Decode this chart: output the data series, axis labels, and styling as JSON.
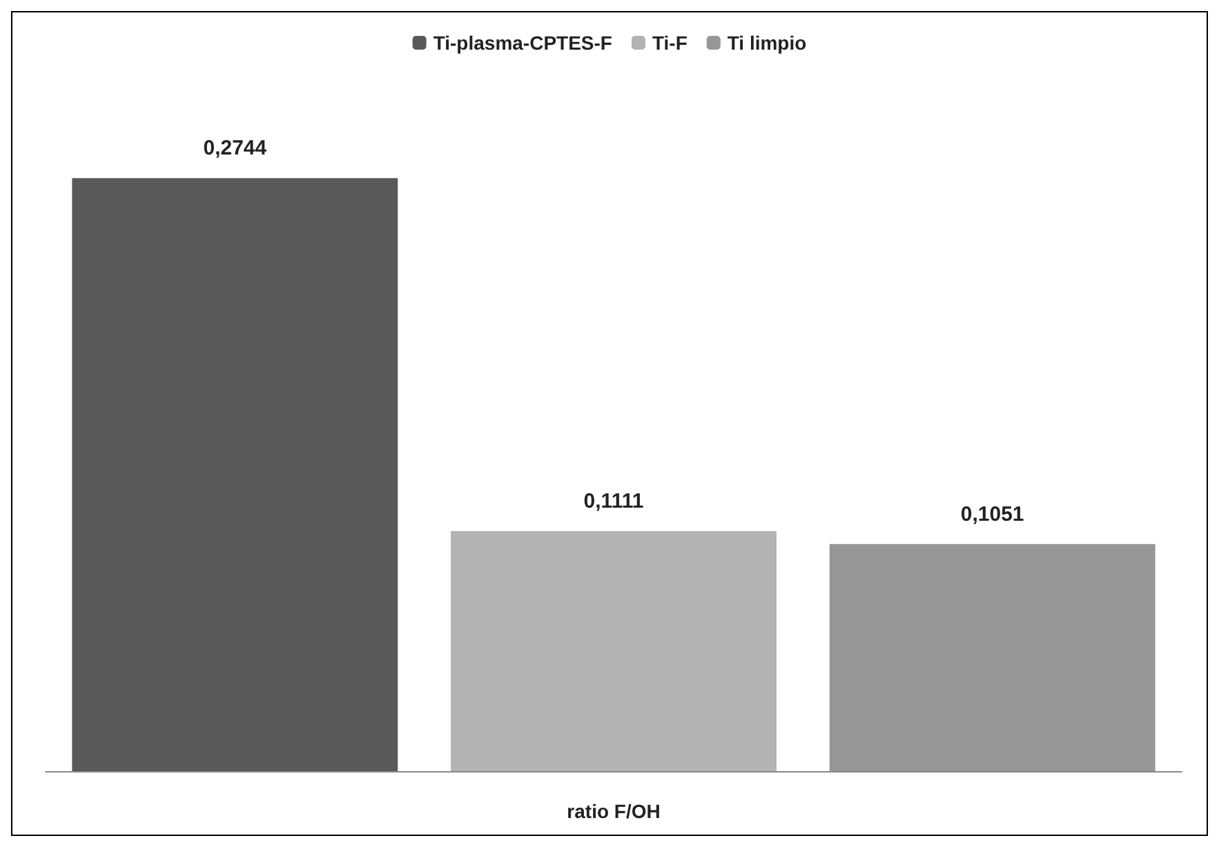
{
  "chart_data": {
    "type": "bar",
    "categories": [
      null,
      null,
      null
    ],
    "xlabel": "ratio F/OH",
    "stacked": true,
    "series": [
      {
        "name": "Ti-plasma-CPTES-F",
        "color": "#595959",
        "values": [
          0.2744,
          null,
          null
        ],
        "value_labels": [
          "0,2744",
          null,
          null
        ]
      },
      {
        "name": "Ti-F",
        "color": "#b3b3b3",
        "values": [
          null,
          0.1111,
          null
        ],
        "value_labels": [
          null,
          "0,1111",
          null
        ]
      },
      {
        "name": "Ti limpio",
        "color": "#969696",
        "values": [
          null,
          null,
          0.1051
        ],
        "value_labels": [
          null,
          null,
          "0,1051"
        ]
      }
    ],
    "legend": "top"
  }
}
